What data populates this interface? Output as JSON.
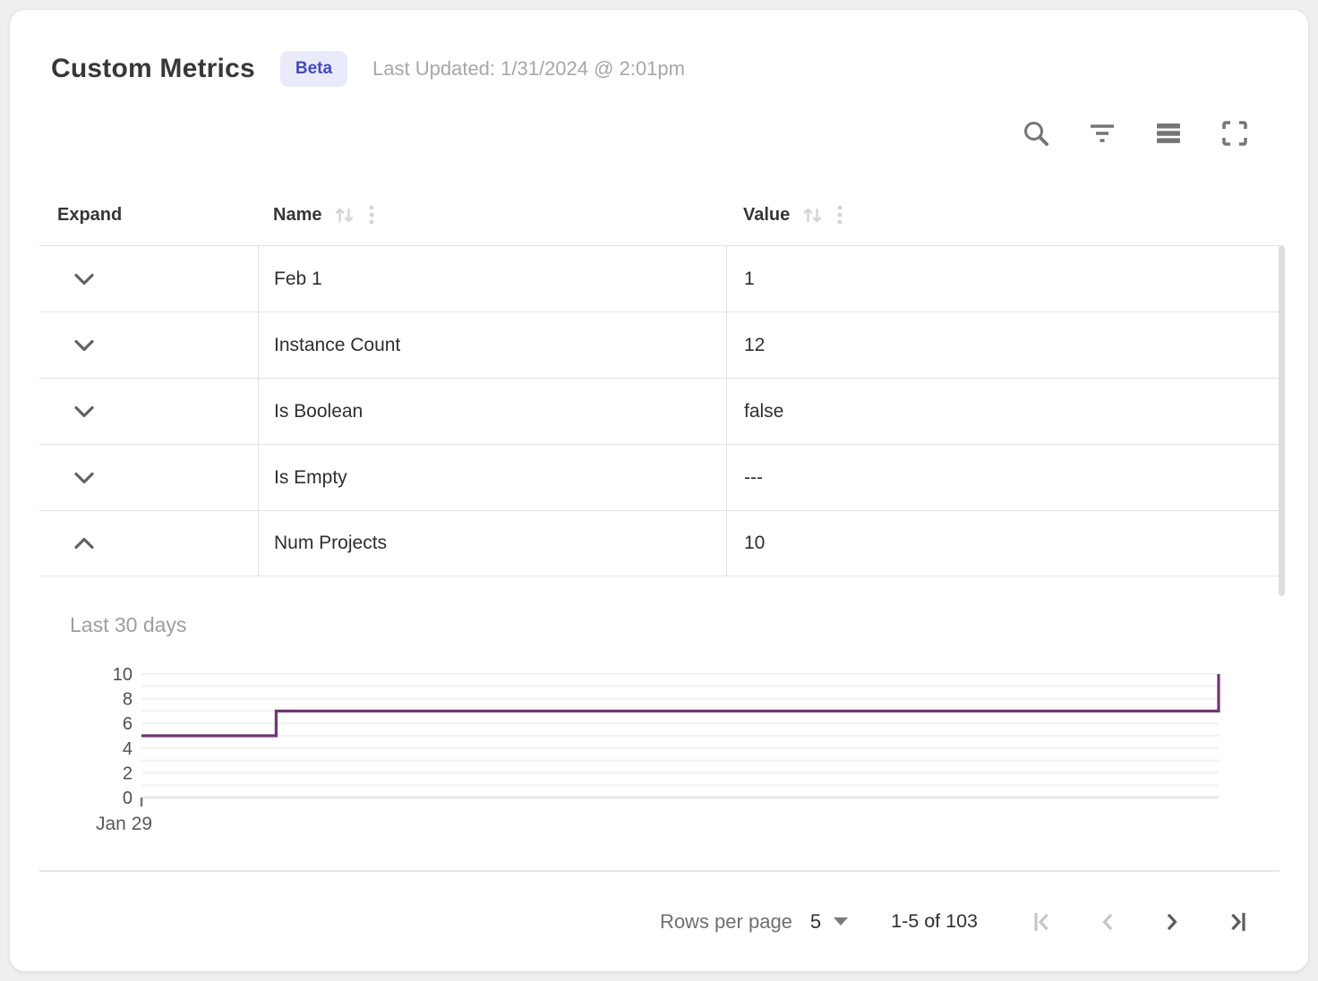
{
  "header": {
    "title": "Custom Metrics",
    "badge": "Beta",
    "last_updated": "Last Updated: 1/31/2024 @ 2:01pm"
  },
  "toolbar": {
    "icons": [
      "search-icon",
      "filter-icon",
      "density-icon",
      "fullscreen-icon"
    ]
  },
  "table": {
    "columns": [
      {
        "label": "Expand",
        "sortable": false
      },
      {
        "label": "Name",
        "sortable": true
      },
      {
        "label": "Value",
        "sortable": true
      }
    ],
    "rows": [
      {
        "name": "Feb 1",
        "value": "1",
        "expanded": false
      },
      {
        "name": "Instance Count",
        "value": "12",
        "expanded": false
      },
      {
        "name": "Is Boolean",
        "value": "false",
        "expanded": false
      },
      {
        "name": "Is Empty",
        "value": "---",
        "expanded": false
      },
      {
        "name": "Num Projects",
        "value": "10",
        "expanded": true
      }
    ]
  },
  "chart": {
    "label": "Last 30 days",
    "x_tick": "Jan 29"
  },
  "chart_data": {
    "type": "line",
    "title": "Last 30 days",
    "series_name": "Num Projects",
    "line_color": "#6f3674",
    "x_axis": {
      "tick_labels": [
        "Jan 29"
      ],
      "range": [
        0,
        1
      ]
    },
    "y_axis": {
      "tick_labels": [
        0,
        2,
        4,
        6,
        8,
        10
      ],
      "range": [
        0,
        10
      ],
      "grid_step": 1
    },
    "grid": true,
    "legend": "none",
    "points": [
      {
        "x": 0.0,
        "y": 5
      },
      {
        "x": 0.125,
        "y": 5
      },
      {
        "x": 0.125,
        "y": 7
      },
      {
        "x": 1.0,
        "y": 7
      },
      {
        "x": 1.0,
        "y": 10
      }
    ]
  },
  "pagination": {
    "rows_per_page_label": "Rows per page",
    "rows_per_page_value": "5",
    "range_label": "1-5 of 103",
    "first_disabled": true,
    "prev_disabled": true,
    "next_disabled": false,
    "last_disabled": false
  },
  "colors": {
    "badge_bg": "#e9ebfb",
    "badge_text": "#4549bb",
    "chart_line": "#6f3674",
    "table_border": "#e2e2e3",
    "gridline": "#f1f1f2"
  }
}
